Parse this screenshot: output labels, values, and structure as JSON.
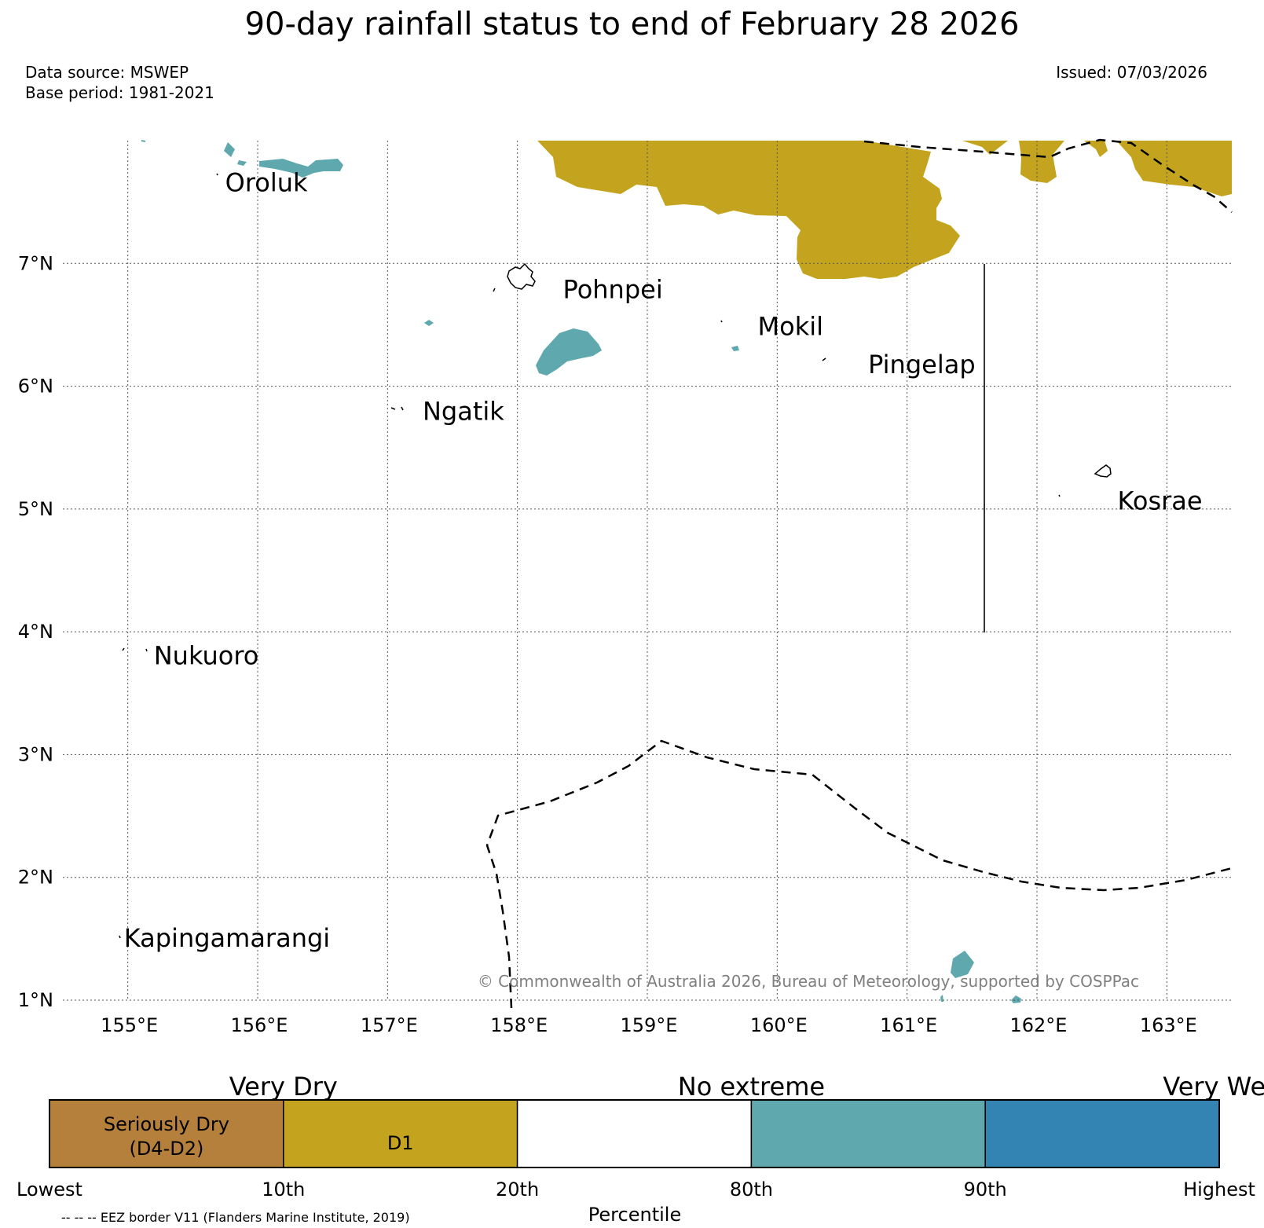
{
  "title": "90-day rainfall status to end of February 28 2026",
  "data_source": "Data source: MSWEP",
  "base_period": "Base period: 1981-2021",
  "issued": "Issued: 07/03/2026",
  "copyright": "© Commonwealth of Australia 2026, Bureau of Meteorology, supported by COSPPac",
  "eez_note": "-- -- -- EEZ border V11 (Flanders Marine Institute, 2019)",
  "map": {
    "lon_range": [
      154.5,
      163.5
    ],
    "lat_range": [
      1,
      8
    ],
    "lon_ticks": [
      {
        "value": 155,
        "label": "155°E"
      },
      {
        "value": 156,
        "label": "156°E"
      },
      {
        "value": 157,
        "label": "157°E"
      },
      {
        "value": 158,
        "label": "158°E"
      },
      {
        "value": 159,
        "label": "159°E"
      },
      {
        "value": 160,
        "label": "160°E"
      },
      {
        "value": 161,
        "label": "161°E"
      },
      {
        "value": 162,
        "label": "162°E"
      },
      {
        "value": 163,
        "label": "163°E"
      }
    ],
    "lat_ticks": [
      {
        "value": 1,
        "label": "1°N"
      },
      {
        "value": 2,
        "label": "2°N"
      },
      {
        "value": 3,
        "label": "3°N"
      },
      {
        "value": 4,
        "label": "4°N"
      },
      {
        "value": 5,
        "label": "5°N"
      },
      {
        "value": 6,
        "label": "6°N"
      },
      {
        "value": 7,
        "label": "7°N"
      }
    ],
    "places": [
      {
        "name": "Oroluk",
        "lon": 155.75,
        "lat": 7.65
      },
      {
        "name": "Pohnpei",
        "lon": 158.35,
        "lat": 6.78
      },
      {
        "name": "Mokil",
        "lon": 159.85,
        "lat": 6.48
      },
      {
        "name": "Pingelap",
        "lon": 160.7,
        "lat": 6.17
      },
      {
        "name": "Ngatik",
        "lon": 157.27,
        "lat": 5.79
      },
      {
        "name": "Kosrae",
        "lon": 162.62,
        "lat": 5.06
      },
      {
        "name": "Nukuoro",
        "lon": 155.2,
        "lat": 3.8
      },
      {
        "name": "Kapingamarangi",
        "lon": 154.97,
        "lat": 1.5
      }
    ]
  },
  "legend": {
    "group_labels": [
      "Very Dry",
      "No extreme",
      "Very Wet"
    ],
    "categories": [
      {
        "label_line1": "Seriously Dry",
        "label_line2": "(D4-D2)",
        "color": "#b5803b"
      },
      {
        "label_line1": "D1",
        "label_line2": "",
        "color": "#c4a41e"
      },
      {
        "label_line1": "",
        "label_line2": "",
        "color": "#ffffff"
      },
      {
        "label_line1": "",
        "label_line2": "",
        "color": "#5fa8ae"
      },
      {
        "label_line1": "",
        "label_line2": "",
        "color": "#3384b3"
      }
    ],
    "ticks": [
      "Lowest",
      "10th",
      "20th",
      "80th",
      "90th",
      "Highest"
    ],
    "axis_label": "Percentile"
  },
  "colors": {
    "d1": "#c4a41e",
    "very_wet": "#5fa8ae",
    "grid": "#555555"
  }
}
